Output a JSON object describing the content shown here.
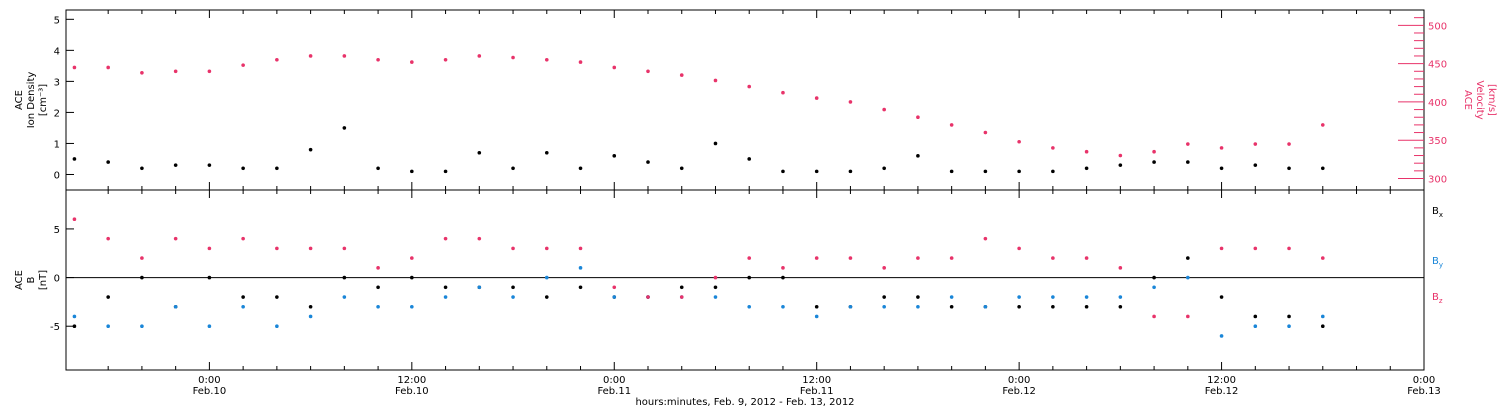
{
  "chart_data": [
    {
      "type": "scatter",
      "panel": "top",
      "left_axis": {
        "title_lines": [
          "ACE",
          "Ion Density",
          "[cm⁻³]"
        ],
        "ylim": [
          -0.5,
          5.3
        ],
        "ticks": [
          0,
          1,
          2,
          3,
          4,
          5
        ],
        "color": "#000000"
      },
      "right_axis": {
        "title_lines": [
          "ACE",
          "Velocity",
          "[km/s]"
        ],
        "ylim": [
          285,
          520
        ],
        "ticks": [
          300,
          350,
          400,
          450,
          500
        ],
        "color": "#e8336a"
      },
      "series": [
        {
          "axis": "left",
          "color": "#000000",
          "x": [
            -8,
            -6,
            -4,
            -2,
            0,
            2,
            4,
            6,
            8,
            10,
            12,
            14,
            16,
            18,
            20,
            22,
            24,
            26,
            28,
            30,
            32,
            34,
            36,
            38,
            40,
            42,
            44,
            46,
            48,
            50,
            52,
            54,
            56,
            58,
            60,
            62,
            64,
            66
          ],
          "values": [
            0.5,
            0.4,
            0.2,
            0.3,
            0.3,
            0.2,
            0.2,
            0.8,
            1.5,
            0.2,
            0.1,
            0.1,
            0.7,
            0.2,
            0.7,
            0.2,
            0.6,
            0.4,
            0.2,
            1.0,
            0.5,
            0.1,
            0.1,
            0.1,
            0.2,
            0.6,
            0.1,
            0.1,
            0.1,
            0.1,
            0.2,
            0.3,
            0.4,
            0.4,
            0.2,
            0.3,
            0.2,
            0.2
          ]
        },
        {
          "axis": "right",
          "color": "#e8336a",
          "x": [
            -8,
            -6,
            -4,
            -2,
            0,
            2,
            4,
            6,
            8,
            10,
            12,
            14,
            16,
            18,
            20,
            22,
            24,
            26,
            28,
            30,
            32,
            34,
            36,
            38,
            40,
            42,
            44,
            46,
            48,
            50,
            52,
            54,
            56,
            58,
            60,
            62,
            64,
            66
          ],
          "values": [
            445,
            445,
            438,
            440,
            440,
            448,
            455,
            460,
            460,
            455,
            452,
            455,
            460,
            458,
            455,
            452,
            445,
            440,
            435,
            428,
            420,
            412,
            405,
            400,
            390,
            380,
            370,
            360,
            348,
            340,
            335,
            330,
            335,
            345,
            340,
            345,
            345,
            370
          ]
        }
      ]
    },
    {
      "type": "scatter",
      "panel": "bottom",
      "left_axis": {
        "title_lines": [
          "ACE",
          "B",
          "[nT]"
        ],
        "ylim": [
          -9.5,
          9
        ],
        "ticks": [
          -5,
          0,
          5
        ]
      },
      "series": [
        {
          "name": "Bx",
          "color": "#000000",
          "x": [
            -8,
            -6,
            -4,
            -2,
            0,
            2,
            4,
            6,
            8,
            10,
            12,
            14,
            16,
            18,
            20,
            22,
            24,
            26,
            28,
            30,
            32,
            34,
            36,
            38,
            40,
            42,
            44,
            46,
            48,
            50,
            52,
            54,
            56,
            58,
            60,
            62,
            64,
            66
          ],
          "values": [
            -5,
            -2,
            0,
            -3,
            0,
            -2,
            -2,
            -3,
            0,
            -1,
            0,
            -1,
            -1,
            -1,
            -2,
            -1,
            -2,
            -2,
            -1,
            -1,
            0,
            0,
            -3,
            -3,
            -2,
            -2,
            -3,
            -3,
            -3,
            -3,
            -3,
            -3,
            0,
            2,
            -2,
            -4,
            -4,
            -5
          ]
        },
        {
          "name": "By",
          "color": "#1a86d8",
          "x": [
            -8,
            -6,
            -4,
            -2,
            0,
            2,
            4,
            6,
            8,
            10,
            12,
            14,
            16,
            18,
            20,
            22,
            24,
            26,
            28,
            30,
            32,
            34,
            36,
            38,
            40,
            42,
            44,
            46,
            48,
            50,
            52,
            54,
            56,
            58,
            60,
            62,
            64,
            66
          ],
          "values": [
            -4,
            -5,
            -5,
            -3,
            -5,
            -3,
            -5,
            -4,
            -2,
            -3,
            -3,
            -2,
            -1,
            -2,
            0,
            1,
            -2,
            -2,
            -2,
            -2,
            -3,
            -3,
            -4,
            -3,
            -3,
            -3,
            -2,
            -3,
            -2,
            -2,
            -2,
            -2,
            -1,
            0,
            -6,
            -5,
            -5,
            -4
          ]
        },
        {
          "name": "Bz",
          "color": "#e8336a",
          "x": [
            -8,
            -6,
            -4,
            -2,
            0,
            2,
            4,
            6,
            8,
            10,
            12,
            14,
            16,
            18,
            20,
            22,
            24,
            26,
            28,
            30,
            32,
            34,
            36,
            38,
            40,
            42,
            44,
            46,
            48,
            50,
            52,
            54,
            56,
            58,
            60,
            62,
            64,
            66
          ],
          "values": [
            6,
            4,
            2,
            4,
            3,
            4,
            3,
            3,
            3,
            1,
            2,
            4,
            4,
            3,
            3,
            3,
            -1,
            -2,
            -2,
            0,
            2,
            1,
            2,
            2,
            1,
            2,
            2,
            4,
            3,
            2,
            2,
            1,
            -4,
            -4,
            3,
            3,
            3,
            2
          ]
        }
      ],
      "legend": [
        "Bx",
        "By",
        "Bz"
      ]
    }
  ],
  "x_axis": {
    "xlim": [
      -8.5,
      72
    ],
    "ticks": [
      {
        "x": 0,
        "time": "0:00",
        "date": "Feb.10"
      },
      {
        "x": 12,
        "time": "12:00",
        "date": "Feb.10"
      },
      {
        "x": 24,
        "time": "0:00",
        "date": "Feb.11"
      },
      {
        "x": 36,
        "time": "12:00",
        "date": "Feb.11"
      },
      {
        "x": 48,
        "time": "0:00",
        "date": "Feb.12"
      },
      {
        "x": 60,
        "time": "12:00",
        "date": "Feb.12"
      },
      {
        "x": 72,
        "time": "0:00",
        "date": "Feb.13"
      }
    ],
    "title": "hours:minutes, Feb. 9, 2012 - Feb. 13, 2012"
  },
  "legend_labels": {
    "bx": "B",
    "bx_sub": "x",
    "by": "B",
    "by_sub": "y",
    "bz": "B",
    "bz_sub": "z"
  }
}
